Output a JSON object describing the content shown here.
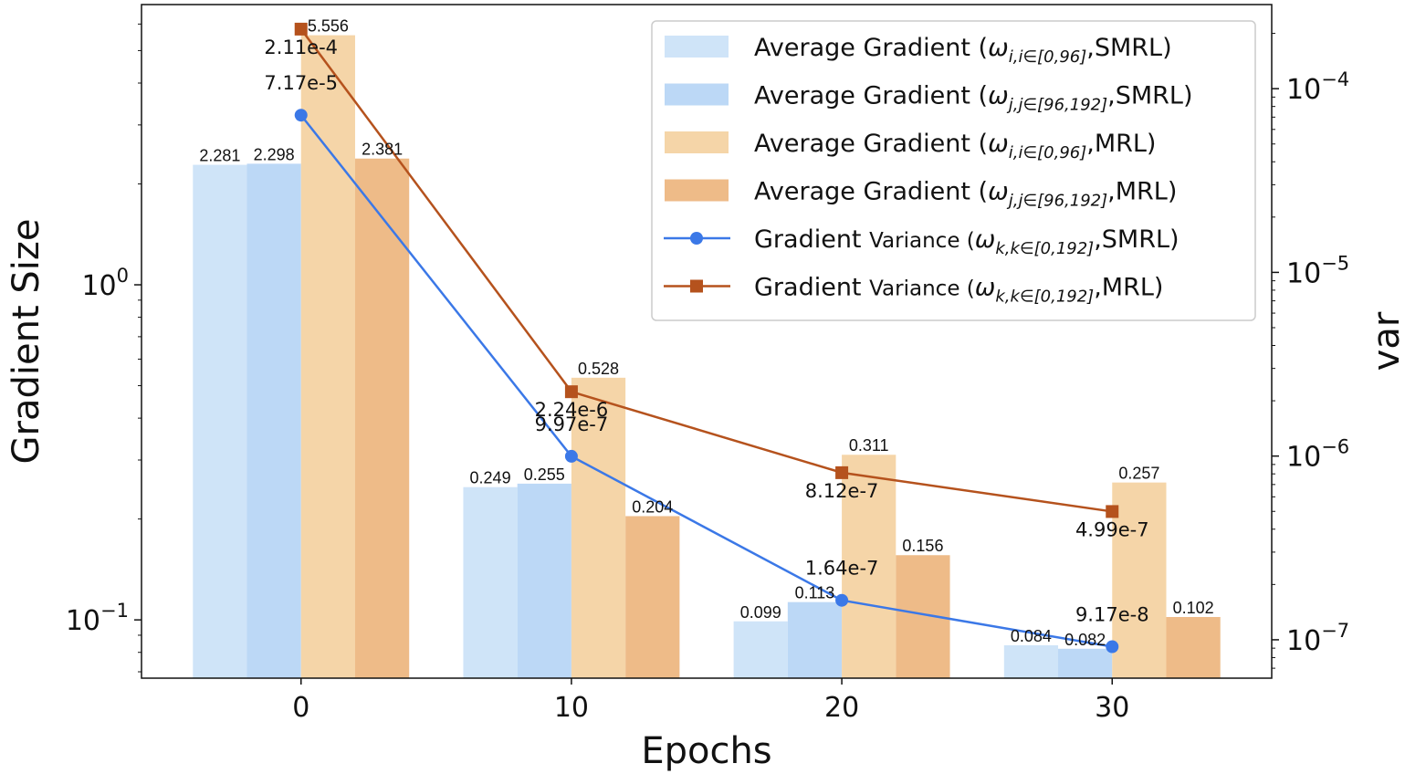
{
  "chart_data": {
    "type": "bar",
    "xlabel": "Epochs",
    "ylabel": "Gradient Size",
    "y2label": "var",
    "categories": [
      0,
      10,
      20,
      30
    ],
    "x_ticks": [
      "0",
      "10",
      "20",
      "30"
    ],
    "xlim": [
      -5.9,
      35.9
    ],
    "ylim": [
      0.067,
      6.86
    ],
    "yscale": "log",
    "y_ticks": [
      {
        "value": 1,
        "base": "10",
        "exp": "0"
      },
      {
        "value": 0.1,
        "base": "10",
        "exp": "−1"
      }
    ],
    "y2lim": [
      6.18e-08,
      0.000287
    ],
    "y2scale": "log",
    "y2_ticks": [
      {
        "value": 0.0001,
        "base": "10",
        "exp": "−4"
      },
      {
        "value": 1e-05,
        "base": "10",
        "exp": "−5"
      },
      {
        "value": 1e-06,
        "base": "10",
        "exp": "−6"
      },
      {
        "value": 1e-07,
        "base": "10",
        "exp": "−7"
      }
    ],
    "grid": false,
    "legend_position": "top-right",
    "bar_series": [
      {
        "legend": {
          "prefix": "Average Gradient (",
          "sym": "ω",
          "sub": "i,i∈[0,96]",
          "suffix": ",SMRL)"
        },
        "color": "#cfe4f8",
        "values": [
          2.281,
          0.249,
          0.099,
          0.084
        ],
        "labels": [
          "2.281",
          "0.249",
          "0.099",
          "0.084"
        ]
      },
      {
        "legend": {
          "prefix": "Average Gradient (",
          "sym": "ω",
          "sub": "j,j∈[96,192]",
          "suffix": ",SMRL)"
        },
        "color": "#bcd8f6",
        "values": [
          2.298,
          0.255,
          0.113,
          0.082
        ],
        "labels": [
          "2.298",
          "0.255",
          "0.113",
          "0.082"
        ]
      },
      {
        "legend": {
          "prefix": "Average Gradient (",
          "sym": "ω",
          "sub": "i,i∈[0,96]",
          "suffix": ",MRL)"
        },
        "color": "#f5d5a8",
        "values": [
          5.556,
          0.528,
          0.311,
          0.257
        ],
        "labels": [
          "5.556",
          "0.528",
          "0.311",
          "0.257"
        ]
      },
      {
        "legend": {
          "prefix": "Average Gradient (",
          "sym": "ω",
          "sub": "j,j∈[96,192]",
          "suffix": ",MRL)"
        },
        "color": "#eebb88",
        "values": [
          2.381,
          0.204,
          0.156,
          0.102
        ],
        "labels": [
          "2.381",
          "0.204",
          "0.156",
          "0.102"
        ]
      }
    ],
    "line_series": [
      {
        "legend": {
          "prefix": "Gradient ",
          "prefix2": "Variance (",
          "sym": "ω",
          "sub": "k,k∈[0,192]",
          "suffix": ",SMRL)"
        },
        "color": "#3b78e7",
        "marker": "circle",
        "axis": "right",
        "values": [
          7.17e-05,
          9.97e-07,
          1.64e-07,
          9.17e-08
        ],
        "labels": [
          "7.17e-5",
          "9.97e-7",
          "1.64e-7",
          "9.17e-8"
        ]
      },
      {
        "legend": {
          "prefix": "Gradient ",
          "prefix2": "Variance (",
          "sym": "ω",
          "sub": "k,k∈[0,192]",
          "suffix": ",MRL)"
        },
        "color": "#b5521d",
        "marker": "square",
        "axis": "right",
        "values": [
          0.000211,
          2.24e-06,
          8.12e-07,
          4.99e-07
        ],
        "labels": [
          "2.11e-4",
          "2.24e-6",
          "8.12e-7",
          "4.99e-7"
        ]
      }
    ]
  }
}
